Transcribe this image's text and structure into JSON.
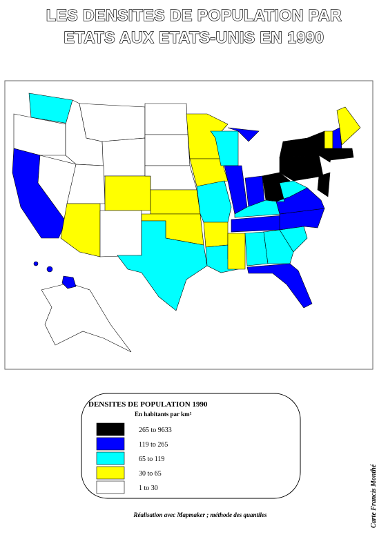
{
  "title": [
    "LES DENSITES DE POPULATION PAR",
    "ETATS AUX ETATS-UNIS EN 1990"
  ],
  "legend": {
    "title": "DENSITES DE POPULATION 1990",
    "subtitle": "En habitants par km²",
    "classes": [
      {
        "label": "265 to 9633",
        "color": "#000000"
      },
      {
        "label": "119 to 265",
        "color": "#0000ff"
      },
      {
        "label": "65 to 119",
        "color": "#00ffff"
      },
      {
        "label": "30 to 65",
        "color": "#ffff00"
      },
      {
        "label": "1 to 30",
        "color": "#ffffff"
      }
    ]
  },
  "footer": "Réalisation avec Mapmaker ; méthode des quantiles",
  "credit": "Carte Francis Monthé"
}
